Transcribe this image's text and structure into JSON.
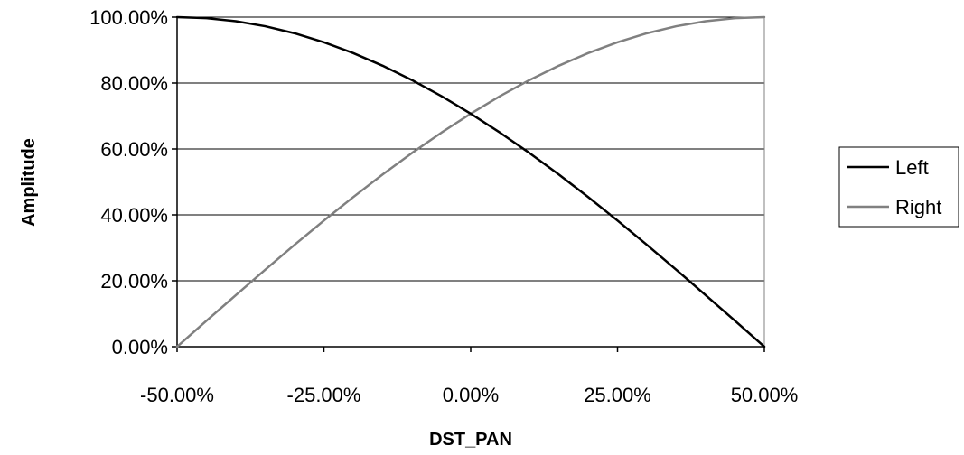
{
  "chart_data": {
    "type": "line",
    "title": "",
    "xlabel": "DST_PAN",
    "ylabel": "Amplitude",
    "xlim": [
      -50,
      50
    ],
    "ylim": [
      0,
      100
    ],
    "x_ticks": [
      -50,
      -25,
      0,
      25,
      50
    ],
    "y_ticks": [
      0,
      20,
      40,
      60,
      80,
      100
    ],
    "x_tick_labels": [
      "-50.00%",
      "-25.00%",
      "0.00%",
      "25.00%",
      "50.00%"
    ],
    "y_tick_labels": [
      "0.00%",
      "20.00%",
      "40.00%",
      "60.00%",
      "80.00%",
      "100.00%"
    ],
    "grid": "horizontal",
    "legend": "right",
    "x": [
      -50,
      -45,
      -40,
      -35,
      -30,
      -25,
      -20,
      -15,
      -10,
      -5,
      0,
      5,
      10,
      15,
      20,
      25,
      30,
      35,
      40,
      45,
      50
    ],
    "series": [
      {
        "name": "Left",
        "color": "#000000",
        "values": [
          100.0,
          99.69,
          98.77,
          97.24,
          95.11,
          92.39,
          89.1,
          85.26,
          80.9,
          76.04,
          70.71,
          64.94,
          58.78,
          52.25,
          45.4,
          38.27,
          30.9,
          23.35,
          15.64,
          7.85,
          0.0
        ]
      },
      {
        "name": "Right",
        "color": "#808080",
        "values": [
          0.0,
          7.85,
          15.64,
          23.35,
          30.9,
          38.27,
          45.4,
          52.25,
          58.78,
          64.94,
          70.71,
          76.04,
          80.9,
          85.26,
          89.1,
          92.39,
          95.11,
          97.24,
          98.77,
          99.69,
          100.0
        ]
      }
    ]
  }
}
